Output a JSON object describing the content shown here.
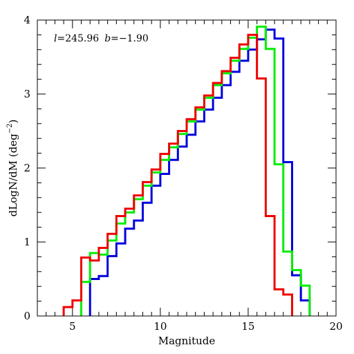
{
  "chart_data": {
    "type": "histogram-step",
    "title": "",
    "annotation": {
      "l_label": "l",
      "l_value": "=245.96",
      "b_label": "b",
      "b_value": "=−1.90"
    },
    "xlabel": "Magnitude",
    "ylabel_main": "dLogN/dM (deg",
    "ylabel_sup": "−2",
    "ylabel_close": ")",
    "xlim": [
      3,
      20
    ],
    "ylim": [
      0,
      4
    ],
    "x_major_ticks": [
      5,
      10,
      15,
      20
    ],
    "x_minor_step": 0.5,
    "y_major_ticks": [
      0,
      1,
      2,
      3,
      4
    ],
    "y_minor_step": 0.2,
    "bin_width": 0.5,
    "series": [
      {
        "color": "#0000dd",
        "bin_start": 6.0,
        "values": [
          0.5,
          0.54,
          0.81,
          0.98,
          1.18,
          1.29,
          1.53,
          1.76,
          1.92,
          2.11,
          2.29,
          2.45,
          2.63,
          2.79,
          2.95,
          3.12,
          3.3,
          3.45,
          3.6,
          3.74,
          3.87,
          3.75,
          2.08,
          0.55,
          0.21
        ]
      },
      {
        "color": "#00ee00",
        "bin_start": 5.5,
        "values": [
          0.46,
          0.85,
          0.83,
          1.02,
          1.25,
          1.4,
          1.58,
          1.76,
          1.94,
          2.11,
          2.28,
          2.46,
          2.63,
          2.79,
          2.95,
          3.12,
          3.28,
          3.45,
          3.61,
          3.76,
          3.91,
          3.61,
          2.05,
          0.87,
          0.62,
          0.41
        ]
      },
      {
        "color": "#ee0000",
        "bin_start": 4.5,
        "values": [
          0.12,
          0.21,
          0.79,
          0.75,
          0.92,
          1.11,
          1.35,
          1.45,
          1.63,
          1.81,
          1.98,
          2.19,
          2.33,
          2.5,
          2.66,
          2.82,
          2.98,
          3.15,
          3.31,
          3.49,
          3.67,
          3.8,
          3.21,
          1.35,
          0.36,
          0.29
        ]
      }
    ]
  }
}
